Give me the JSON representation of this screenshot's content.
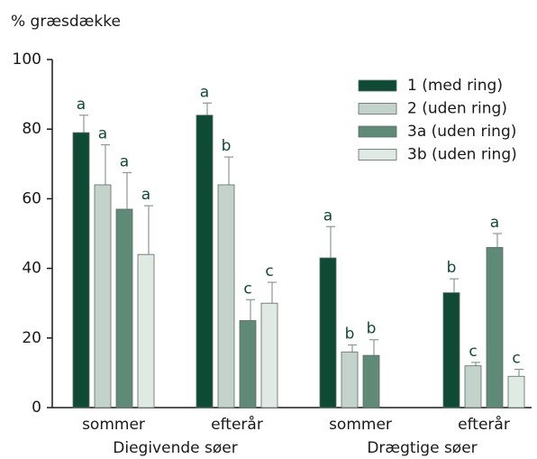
{
  "chart_data": {
    "type": "bar",
    "y_label": "% græsdække",
    "categories": [
      "sommer",
      "efterår",
      "sommer",
      "efterår"
    ],
    "group_labels": [
      "Diegivende søer",
      "Drægtige søer"
    ],
    "ylim": [
      0,
      100
    ],
    "yticks": [
      0,
      20,
      40,
      60,
      80,
      100
    ],
    "grid": false,
    "legend": "top-right",
    "series": [
      {
        "name": "1 (med ring)",
        "color": "#0f4a34",
        "values": [
          79,
          84,
          43,
          33
        ],
        "errors": [
          5,
          3.5,
          9,
          4
        ],
        "labels": [
          "a",
          "a",
          "a",
          "b"
        ]
      },
      {
        "name": "2 (uden ring)",
        "color": "#c3d3cb",
        "values": [
          64,
          64,
          16,
          12
        ],
        "errors": [
          11.5,
          8,
          2,
          1
        ],
        "labels": [
          "a",
          "b",
          "b",
          "c"
        ]
      },
      {
        "name": "3a (uden ring)",
        "color": "#5f8a78",
        "values": [
          57,
          25,
          15,
          46
        ],
        "errors": [
          10.5,
          6,
          4.5,
          4
        ],
        "labels": [
          "a",
          "c",
          "b",
          "a"
        ]
      },
      {
        "name": "3b (uden ring)",
        "color": "#e1e9e4",
        "values": [
          44,
          30,
          null,
          9
        ],
        "errors": [
          14,
          6,
          null,
          2
        ],
        "labels": [
          "a",
          "c",
          null,
          "c"
        ]
      }
    ]
  }
}
